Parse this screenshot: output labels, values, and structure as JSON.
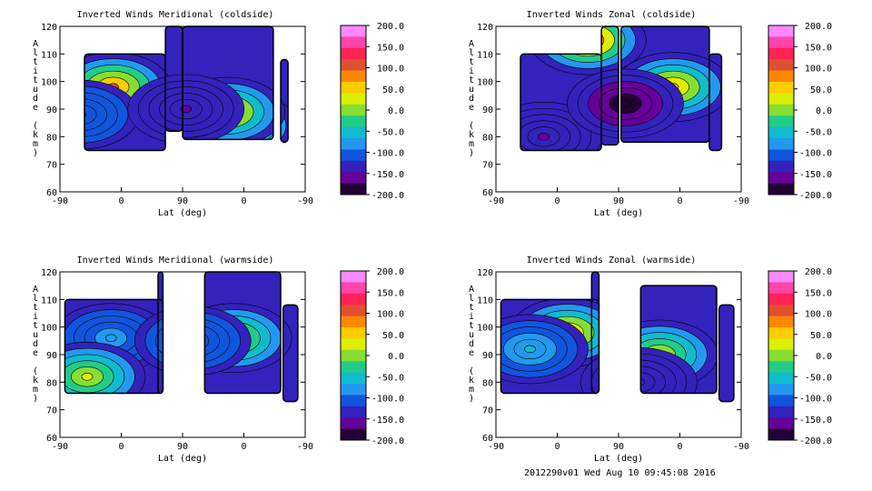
{
  "footer": "2012290v01 Wed Aug 10 09:45:08 2016",
  "chart_data": [
    {
      "type": "heatmap",
      "title": "Inverted Winds Meridional (coldside)",
      "xlabel": "Lat (deg)",
      "ylabel": "Altitude (km)",
      "x_ticks": [
        "-90",
        "0",
        "90",
        "0",
        "-90"
      ],
      "y_ticks": [
        60,
        70,
        80,
        90,
        100,
        110,
        120
      ],
      "ylim": [
        60,
        120
      ],
      "colorbar": {
        "ticks": [
          "200.0",
          "150.0",
          "100.0",
          "50.0",
          "0.0",
          "-50.0",
          "-100.0",
          "-150.0",
          "-200.0"
        ],
        "range": [
          -200,
          200
        ],
        "colors": [
          "#ff88ff",
          "#ff44aa",
          "#ff2255",
          "#e05030",
          "#ff8800",
          "#ffcc00",
          "#ddee00",
          "#88dd33",
          "#22cc88",
          "#11bbcc",
          "#2299ee",
          "#1155dd",
          "#3322bb",
          "#660099",
          "#220033"
        ]
      },
      "features": [
        {
          "type": "peak",
          "lat_deg": -12,
          "alt_km": 98,
          "value": 100
        },
        {
          "type": "peak",
          "lat_deg": 8,
          "alt_km": 84,
          "value": 80
        },
        {
          "type": "peak",
          "lat_deg": 25,
          "alt_km": 89,
          "value": 75
        },
        {
          "type": "trough",
          "lat_deg": -60,
          "alt_km": 88,
          "value": -100
        },
        {
          "type": "trough",
          "lat_deg": 85,
          "alt_km": 90,
          "value": -150
        }
      ]
    },
    {
      "type": "heatmap",
      "title": "Inverted Winds Zonal (coldside)",
      "xlabel": "Lat (deg)",
      "ylabel": "Altitude (km)",
      "x_ticks": [
        "-90",
        "0",
        "90",
        "0",
        "-90"
      ],
      "y_ticks": [
        60,
        70,
        80,
        90,
        100,
        110,
        120
      ],
      "ylim": [
        60,
        120
      ],
      "colorbar": {
        "ticks": [
          "200.0",
          "150.0",
          "100.0",
          "50.0",
          "0.0",
          "-50.0",
          "-100.0",
          "-150.0",
          "-200.0"
        ],
        "range": [
          -200,
          200
        ]
      },
      "features": [
        {
          "type": "peak",
          "lat_deg": 45,
          "alt_km": 115,
          "value": 120
        },
        {
          "type": "peak",
          "lat_deg": 10,
          "alt_km": 98,
          "value": 60
        },
        {
          "type": "trough",
          "lat_deg": -20,
          "alt_km": 80,
          "value": -150
        },
        {
          "type": "trough",
          "lat_deg": 80,
          "alt_km": 92,
          "value": -200
        }
      ]
    },
    {
      "type": "heatmap",
      "title": "Inverted Winds Meridional (warmside)",
      "xlabel": "Lat (deg)",
      "ylabel": "Altitude (km)",
      "x_ticks": [
        "-90",
        "0",
        "90",
        "0",
        "-90"
      ],
      "y_ticks": [
        60,
        70,
        80,
        90,
        100,
        110,
        120
      ],
      "ylim": [
        60,
        120
      ],
      "colorbar": {
        "ticks": [
          "200.0",
          "150.0",
          "100.0",
          "50.0",
          "0.0",
          "-50.0",
          "-100.0",
          "-150.0",
          "-200.0"
        ],
        "range": [
          -200,
          200
        ]
      },
      "features": [
        {
          "type": "trough",
          "lat_deg": -15,
          "alt_km": 96,
          "value": -80
        },
        {
          "type": "peak",
          "lat_deg": -50,
          "alt_km": 82,
          "value": 40
        },
        {
          "type": "peak",
          "lat_deg": 15,
          "alt_km": 96,
          "value": 30
        },
        {
          "type": "trough",
          "lat_deg": 75,
          "alt_km": 95,
          "value": -100
        }
      ]
    },
    {
      "type": "heatmap",
      "title": "Inverted Winds Zonal (warmside)",
      "xlabel": "Lat (deg)",
      "ylabel": "Altitude (km)",
      "x_ticks": [
        "-90",
        "0",
        "90",
        "0",
        "-90"
      ],
      "y_ticks": [
        60,
        70,
        80,
        90,
        100,
        110,
        120
      ],
      "ylim": [
        60,
        120
      ],
      "colorbar": {
        "ticks": [
          "200.0",
          "150.0",
          "100.0",
          "50.0",
          "0.0",
          "-50.0",
          "-100.0",
          "-150.0",
          "-200.0"
        ],
        "range": [
          -200,
          200
        ]
      },
      "features": [
        {
          "type": "peak",
          "lat_deg": 15,
          "alt_km": 98,
          "value": 60
        },
        {
          "type": "peak",
          "lat_deg": 30,
          "alt_km": 90,
          "value": 40
        },
        {
          "type": "trough",
          "lat_deg": -40,
          "alt_km": 92,
          "value": -60
        },
        {
          "type": "trough",
          "lat_deg": 60,
          "alt_km": 80,
          "value": -120
        }
      ]
    }
  ]
}
